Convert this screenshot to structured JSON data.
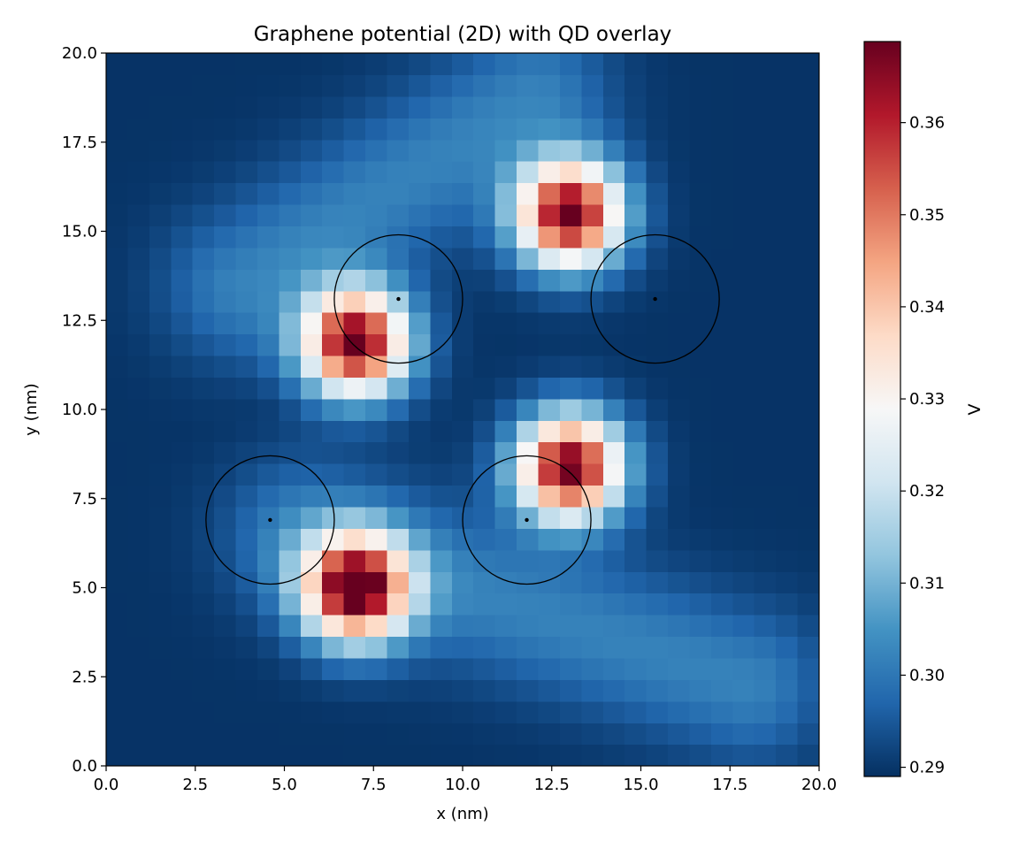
{
  "chart_data": {
    "type": "heatmap",
    "title": "Graphene potential (2D) with QD overlay",
    "xlabel": "x (nm)",
    "ylabel": "y (nm)",
    "xlim": [
      0,
      20
    ],
    "ylim": [
      0,
      20
    ],
    "x_ticks": [
      "0.0",
      "2.5",
      "5.0",
      "7.5",
      "10.0",
      "12.5",
      "15.0",
      "17.5",
      "20.0"
    ],
    "y_ticks": [
      "0.0",
      "2.5",
      "5.0",
      "7.5",
      "10.0",
      "12.5",
      "15.0",
      "17.5",
      "20.0"
    ],
    "grid": false,
    "colormap": "RdBu_r",
    "grid_cells": [
      33,
      33
    ],
    "colorbar": {
      "label": "V",
      "range": [
        0.289,
        0.3688
      ],
      "ticks": [
        "0.29",
        "0.30",
        "0.31",
        "0.32",
        "0.33",
        "0.34",
        "0.35",
        "0.36"
      ],
      "tick_values": [
        0.29,
        0.3,
        0.31,
        0.32,
        0.33,
        0.34,
        0.35,
        0.36
      ]
    },
    "background": {
      "base": 0.2895,
      "ridge_amplitude": 0.0125,
      "ridge_sigma": 1.5,
      "ridges": [
        [
          3.8,
          13.5,
          12.0,
          18.8
        ],
        [
          5.5,
          6.5,
          18.0,
          2.3
        ]
      ]
    },
    "potential_peaks": [
      {
        "x": 7.0,
        "y": 11.9,
        "value": 0.3688,
        "sigma": 1.05
      },
      {
        "x": 13.0,
        "y": 15.5,
        "value": 0.3688,
        "sigma": 1.05
      },
      {
        "x": 13.0,
        "y": 8.4,
        "value": 0.3688,
        "sigma": 1.05
      },
      {
        "x": 7.0,
        "y": 5.0,
        "value": 0.3688,
        "sigma": 1.05
      }
    ],
    "quantum_dots": [
      {
        "x": 8.2,
        "y": 13.1,
        "radius": 1.8
      },
      {
        "x": 15.4,
        "y": 13.1,
        "radius": 1.8
      },
      {
        "x": 4.6,
        "y": 6.9,
        "radius": 1.8
      },
      {
        "x": 11.8,
        "y": 6.9,
        "radius": 1.8
      }
    ]
  }
}
